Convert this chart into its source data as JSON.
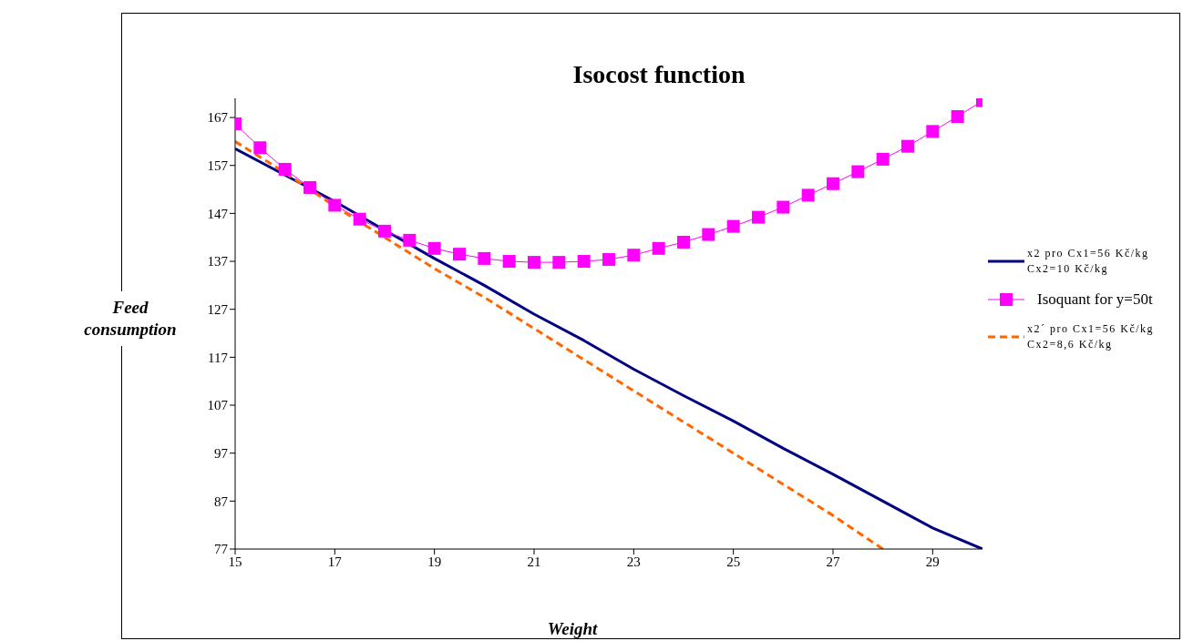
{
  "chart_data": {
    "type": "line",
    "title": "Isocost function",
    "xlabel": "Weight",
    "ylabel": "Feed consumption",
    "xlim": [
      15,
      30
    ],
    "xticks": [
      15,
      17,
      19,
      21,
      23,
      25,
      27,
      29
    ],
    "ylim": [
      77,
      171
    ],
    "yticks": [
      77,
      87,
      97,
      107,
      117,
      127,
      137,
      147,
      157,
      167
    ],
    "grid": false,
    "legend": "right",
    "series": [
      {
        "name": "x2 pro Cx1=56 Kč/kg Cx2=10 Kč/kg",
        "color": "#000080",
        "marker": "none",
        "line_style": "solid",
        "x": [
          15,
          16,
          17,
          18,
          19,
          20,
          21,
          22,
          23,
          24,
          25,
          26,
          27,
          28,
          29,
          30
        ],
        "values": [
          160.5,
          155,
          149.5,
          143.5,
          137.6,
          132,
          126,
          120.5,
          114.5,
          109,
          103.7,
          98,
          92.6,
          87,
          81.4,
          77
        ]
      },
      {
        "name": "Isoquant for y=50t",
        "color": "#ff00ff",
        "marker": "square",
        "line_style": "solid",
        "x": [
          15,
          15.5,
          16,
          16.5,
          17,
          17.5,
          18,
          18.5,
          19,
          19.5,
          20,
          20.5,
          21,
          21.5,
          22,
          22.5,
          23,
          23.5,
          24,
          24.5,
          25,
          25.5,
          26,
          26.5,
          27,
          27.5,
          28,
          28.5,
          29,
          29.5,
          30
        ],
        "values": [
          165.7,
          160.7,
          156.2,
          152.4,
          148.7,
          145.8,
          143.3,
          141.4,
          139.7,
          138.5,
          137.6,
          137,
          136.8,
          136.8,
          137,
          137.4,
          138.3,
          139.7,
          141,
          142.6,
          144.3,
          146.2,
          148.3,
          150.8,
          153.2,
          155.7,
          158.3,
          161,
          164.1,
          167.2,
          170.5
        ]
      },
      {
        "name": "x2´ pro Cx1=56 Kč/kg Cx2=8,6 Kč/kg",
        "color": "#ff6600",
        "marker": "none",
        "line_style": "dashed",
        "x": [
          15,
          16,
          17,
          18,
          19,
          20,
          21,
          22,
          23,
          24,
          25,
          26,
          27,
          28
        ],
        "values": [
          162,
          155.5,
          148.5,
          142,
          135.5,
          129.5,
          123,
          116.5,
          110,
          103.5,
          97,
          90.5,
          84,
          77
        ]
      }
    ]
  }
}
